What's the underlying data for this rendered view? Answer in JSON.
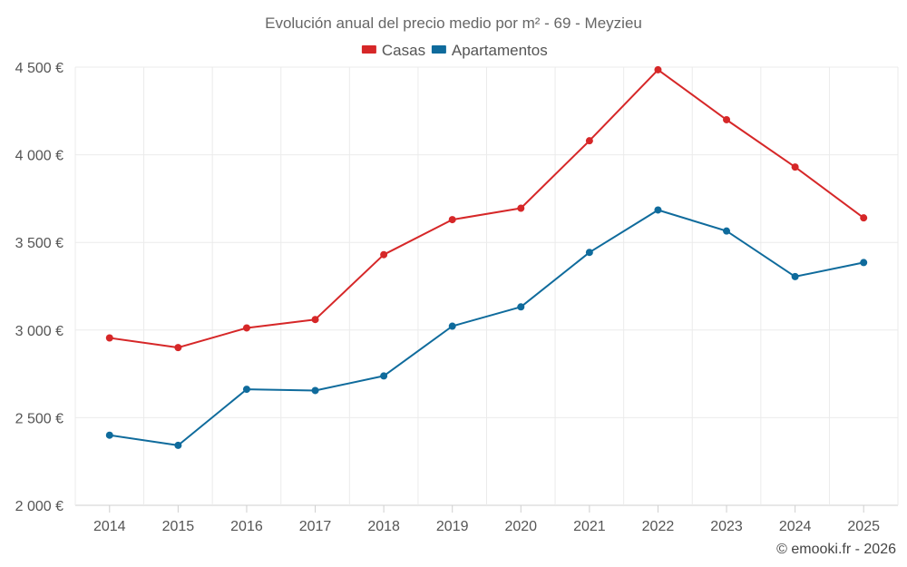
{
  "chart_data": {
    "type": "line",
    "title": "Evolución anual del precio medio por m² - 69 - Meyzieu",
    "categories": [
      "2014",
      "2015",
      "2016",
      "2017",
      "2018",
      "2019",
      "2020",
      "2021",
      "2022",
      "2023",
      "2024",
      "2025"
    ],
    "series": [
      {
        "name": "Casas",
        "color": "#d62728",
        "values": [
          2955,
          2900,
          3012,
          3060,
          3430,
          3630,
          3695,
          4080,
          4485,
          4200,
          3930,
          3640
        ]
      },
      {
        "name": "Apartamentos",
        "color": "#0f6b9c",
        "values": [
          2400,
          2342,
          2662,
          2655,
          2738,
          3022,
          3132,
          3443,
          3685,
          3565,
          3305,
          3385
        ]
      }
    ],
    "ylim": [
      2000,
      4500
    ],
    "yticks": [
      2000,
      2500,
      3000,
      3500,
      4000,
      4500
    ],
    "ytick_labels": [
      "2 000 €",
      "2 500 €",
      "3 000 €",
      "3 500 €",
      "4 000 €",
      "4 500 €"
    ],
    "xlabel": "",
    "ylabel": "",
    "grid": true,
    "legend_position": "top-center"
  },
  "credit": "© emooki.fr - 2026"
}
